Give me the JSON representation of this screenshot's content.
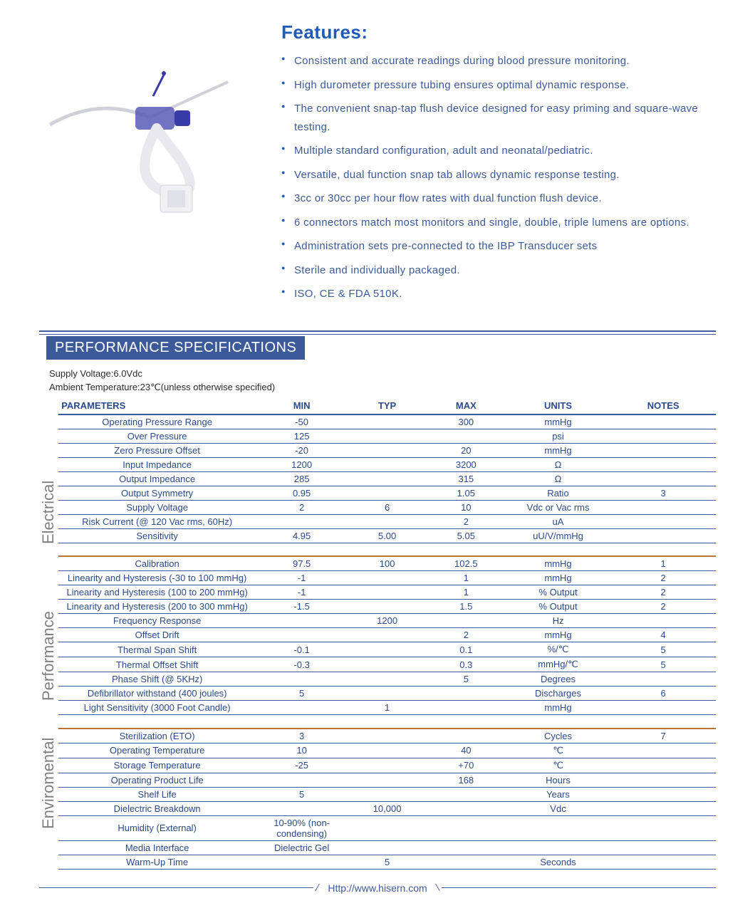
{
  "colors": {
    "primary": "#1e5bb8",
    "text": "#3c5a99",
    "header_bg": "#3c5a99",
    "section_divider": "#b87333",
    "vlabel": "#808080",
    "white": "#ffffff"
  },
  "features": {
    "title": "Features:",
    "items": [
      "Consistent and accurate readings during blood pressure monitoring.",
      "High durometer pressure tubing ensures optimal dynamic response.",
      "The convenient snap-tap flush device designed for easy priming and square-wave testing.",
      "Multiple standard configuration, adult and neonatal/pediatric.",
      "Versatile, dual function snap tab allows dynamic response testing.",
      "3cc or 30cc per hour flow rates with dual function flush device.",
      "6 connectors match most monitors and single, double, triple lumens are options.",
      "Administration sets pre-connected to the IBP Transducer sets",
      "Sterile and individually packaged.",
      "ISO, CE & FDA 510K."
    ]
  },
  "spec": {
    "title": "PERFORMANCE SPECIFICATIONS",
    "meta": [
      "Supply Voltage:6.0Vdc",
      "Ambient Temperature:23℃(unless otherwise specified)"
    ],
    "columns": [
      "PARAMETERS",
      "MIN",
      "TYP",
      "MAX",
      "UNITS",
      "NOTES"
    ],
    "column_widths": [
      "30%",
      "14%",
      "12%",
      "12%",
      "16%",
      "16%"
    ],
    "groups": [
      {
        "label": "Electrical",
        "rows": [
          {
            "p": "Operating Pressure Range",
            "min": "-50",
            "typ": "",
            "max": "300",
            "units": "mmHg",
            "notes": ""
          },
          {
            "p": "Over  Pressure",
            "min": "125",
            "typ": "",
            "max": "",
            "units": "psi",
            "notes": ""
          },
          {
            "p": "Zero Pressure Offset",
            "min": "-20",
            "typ": "",
            "max": "20",
            "units": "mmHg",
            "notes": ""
          },
          {
            "p": "Input Impedance",
            "min": "1200",
            "typ": "",
            "max": "3200",
            "units": "Ω",
            "notes": ""
          },
          {
            "p": "Output Impedance",
            "min": "285",
            "typ": "",
            "max": "315",
            "units": "Ω",
            "notes": ""
          },
          {
            "p": "Output Symmetry",
            "min": "0.95",
            "typ": "",
            "max": "1.05",
            "units": "Ratio",
            "notes": "3"
          },
          {
            "p": "Supply Voltage",
            "min": "2",
            "typ": "6",
            "max": "10",
            "units": "Vdc or Vac rms",
            "notes": ""
          },
          {
            "p": "Risk Current (@ 120 Vac rms, 60Hz)",
            "min": "",
            "typ": "",
            "max": "2",
            "units": "uA",
            "notes": ""
          },
          {
            "p": "Sensitivity",
            "min": "4.95",
            "typ": "5.00",
            "max": "5.05",
            "units": "uU/V/mmHg",
            "notes": ""
          }
        ]
      },
      {
        "label": "Performance",
        "rows": [
          {
            "p": "Calibration",
            "min": "97.5",
            "typ": "100",
            "max": "102.5",
            "units": "mmHg",
            "notes": "1"
          },
          {
            "p": "Linearity and Hysteresis (-30 to 100 mmHg)",
            "min": "-1",
            "typ": "",
            "max": "1",
            "units": "mmHg",
            "notes": "2"
          },
          {
            "p": "Linearity and Hysteresis (100 to 200 mmHg)",
            "min": "-1",
            "typ": "",
            "max": "1",
            "units": "% Output",
            "notes": "2"
          },
          {
            "p": "Linearity and Hysteresis (200 to 300 mmHg)",
            "min": "-1.5",
            "typ": "",
            "max": "1.5",
            "units": "% Output",
            "notes": "2"
          },
          {
            "p": "Frequency Response",
            "min": "",
            "typ": "1200",
            "max": "",
            "units": "Hz",
            "notes": ""
          },
          {
            "p": "Offset Drift",
            "min": "",
            "typ": "",
            "max": "2",
            "units": "mmHg",
            "notes": "4"
          },
          {
            "p": "Thermal Span Shift",
            "min": "-0.1",
            "typ": "",
            "max": "0.1",
            "units": "%/℃",
            "notes": "5"
          },
          {
            "p": "Thermal Offset Shift",
            "min": "-0.3",
            "typ": "",
            "max": "0.3",
            "units": "mmHg/℃",
            "notes": "5"
          },
          {
            "p": "Phase Shift (@ 5KHz)",
            "min": "",
            "typ": "",
            "max": "5",
            "units": "Degrees",
            "notes": ""
          },
          {
            "p": "Defibrillator withstand (400 joules)",
            "min": "5",
            "typ": "",
            "max": "",
            "units": "Discharges",
            "notes": "6"
          },
          {
            "p": "Light Sensitivity (3000 Foot Candle)",
            "min": "",
            "typ": "1",
            "max": "",
            "units": "mmHg",
            "notes": ""
          }
        ]
      },
      {
        "label": "Enviromental",
        "rows": [
          {
            "p": "Sterilization (ETO)",
            "min": "3",
            "typ": "",
            "max": "",
            "units": "Cycles",
            "notes": "7"
          },
          {
            "p": "Operating Temperature",
            "min": "10",
            "typ": "",
            "max": "40",
            "units": "℃",
            "notes": ""
          },
          {
            "p": "Storage Temperature",
            "min": "-25",
            "typ": "",
            "max": "+70",
            "units": "℃",
            "notes": ""
          },
          {
            "p": "Operating Product Life",
            "min": "",
            "typ": "",
            "max": "168",
            "units": "Hours",
            "notes": ""
          },
          {
            "p": "Shelf Life",
            "min": "5",
            "typ": "",
            "max": "",
            "units": "Years",
            "notes": ""
          },
          {
            "p": "Dielectric Breakdown",
            "min": "",
            "typ": "10,000",
            "max": "",
            "units": "Vdc",
            "notes": ""
          },
          {
            "p": "Humidity (External)",
            "min": "10-90% (non-condensing)",
            "typ": "",
            "max": "",
            "units": "",
            "notes": ""
          },
          {
            "p": "Media Interface",
            "min": "Dielectric Gel",
            "typ": "",
            "max": "",
            "units": "",
            "notes": ""
          },
          {
            "p": "Warm-Up Time",
            "min": "",
            "typ": "5",
            "max": "",
            "units": "Seconds",
            "notes": ""
          }
        ]
      }
    ]
  },
  "footer": {
    "url": "Http://www.hisern.com"
  }
}
